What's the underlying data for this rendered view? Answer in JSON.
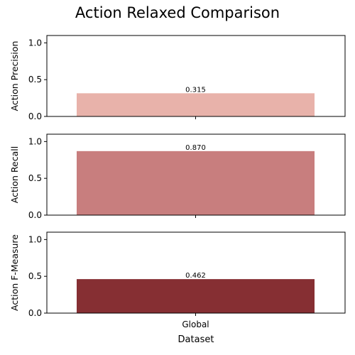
{
  "chart_data": {
    "type": "bar",
    "title": "Action Relaxed Comparison",
    "xlabel": "Dataset",
    "categories": [
      "Global"
    ],
    "ylim": [
      0,
      1.1
    ],
    "yticks": [
      "0.0",
      "0.5",
      "1.0"
    ],
    "grid": false,
    "panels": [
      {
        "ylabel": "Action Precision",
        "value": 0.315,
        "label": "0.315",
        "color": "#e8b2aa"
      },
      {
        "ylabel": "Action Recall",
        "value": 0.87,
        "label": "0.870",
        "color": "#c87e7e"
      },
      {
        "ylabel": "Action F-Measure",
        "value": 0.462,
        "label": "0.462",
        "color": "#862f33"
      }
    ]
  }
}
